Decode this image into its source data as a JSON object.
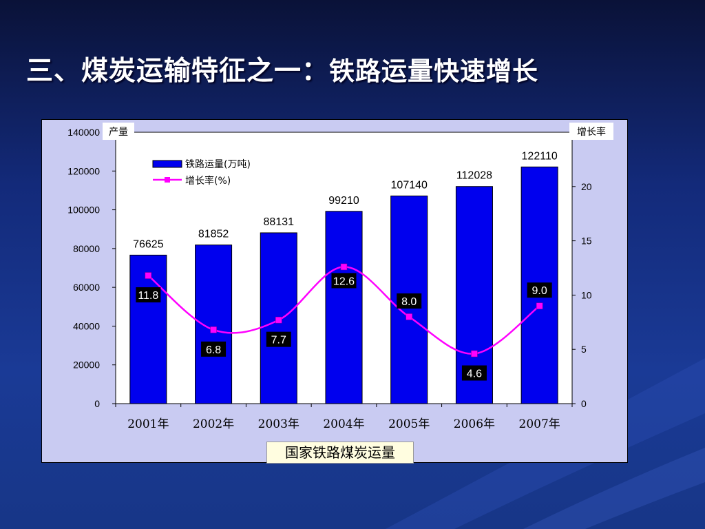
{
  "slide": {
    "title_main": "三、煤炭运输特征之一：",
    "title_sub": "铁路运量快速增长"
  },
  "colors": {
    "bar": "#0000ee",
    "line": "#ff00ff",
    "plot_bg": "#ffffff",
    "frame_bg": "#c9cbf2"
  },
  "chart_data": {
    "type": "bar",
    "categories": [
      "2001年",
      "2002年",
      "2003年",
      "2004年",
      "2005年",
      "2006年",
      "2007年"
    ],
    "series": [
      {
        "name": "铁路运量(万吨)",
        "type": "bar",
        "axis": "left",
        "values": [
          76625,
          81852,
          88131,
          99210,
          107140,
          112028,
          122110
        ]
      },
      {
        "name": "增长率(%)",
        "type": "line",
        "axis": "right",
        "values": [
          11.8,
          6.8,
          7.7,
          12.6,
          8.0,
          4.6,
          9.0
        ]
      }
    ],
    "bar_labels": [
      "76625",
      "81852",
      "88131",
      "99210",
      "107140",
      "112028",
      "122110"
    ],
    "line_labels": [
      "11.8",
      "6.8",
      "7.7",
      "12.6",
      "8.0",
      "4.6",
      "9.0"
    ],
    "y_left": {
      "label": "产量",
      "ylim": [
        0,
        140000
      ],
      "ticks": [
        "0",
        "20000",
        "40000",
        "60000",
        "80000",
        "100000",
        "120000",
        "140000"
      ]
    },
    "y_right": {
      "label": "增长率",
      "ylim": [
        0,
        25
      ],
      "ticks": [
        "0",
        "5",
        "10",
        "15",
        "20"
      ]
    },
    "legend_position": "top-left",
    "caption": "国家铁路煤炭运量",
    "grid": false
  }
}
